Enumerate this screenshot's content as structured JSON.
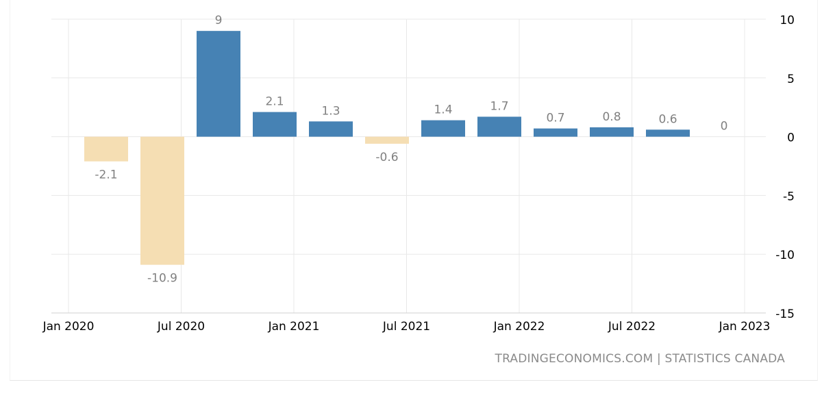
{
  "chart_data": {
    "type": "bar",
    "categories": [
      "Q1 2020",
      "Q2 2020",
      "Q3 2020",
      "Q4 2020",
      "Q1 2021",
      "Q2 2021",
      "Q3 2021",
      "Q4 2021",
      "Q1 2022",
      "Q2 2022",
      "Q3 2022",
      "Q4 2022"
    ],
    "values": [
      -2.1,
      -10.9,
      9,
      2.1,
      1.3,
      -0.6,
      1.4,
      1.7,
      0.7,
      0.8,
      0.6,
      0
    ],
    "value_labels": [
      "-2.1",
      "-10.9",
      "9",
      "2.1",
      "1.3",
      "-0.6",
      "1.4",
      "1.7",
      "0.7",
      "0.8",
      "0.6",
      "0"
    ],
    "x_tick_labels": [
      "Jan 2020",
      "Jul 2020",
      "Jan 2021",
      "Jul 2021",
      "Jan 2022",
      "Jul 2022",
      "Jan 2023"
    ],
    "y_ticks": [
      10,
      5,
      0,
      -5,
      -10,
      -15
    ],
    "ylim": [
      -15,
      10
    ],
    "title": "",
    "xlabel": "",
    "ylabel": "",
    "y_axis_side": "right",
    "grid": true,
    "colors": {
      "positive": "#4682b4",
      "negative": "#f5deb3",
      "grid": "#e8e8e8",
      "tick_text": "#000000",
      "label_text": "#808080"
    }
  },
  "source_text": "TRADINGECONOMICS.COM  |  STATISTICS CANADA"
}
